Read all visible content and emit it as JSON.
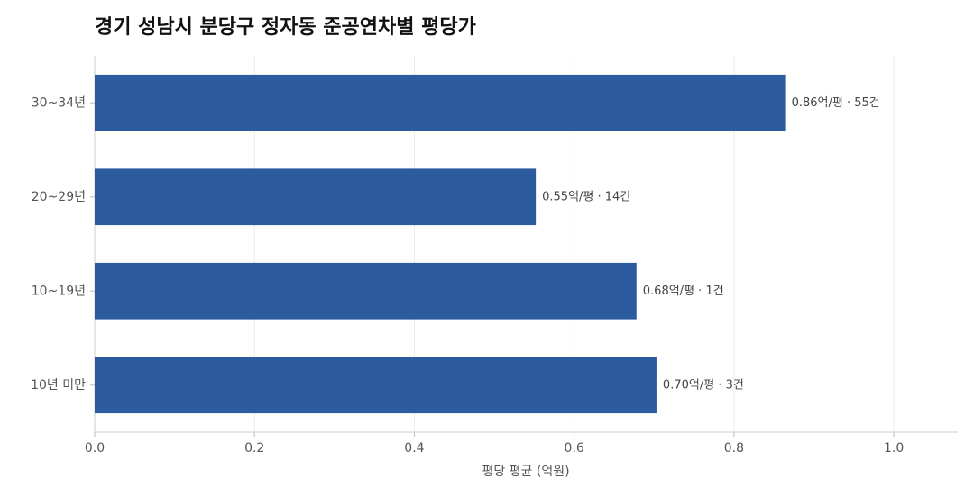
{
  "chart_data": {
    "type": "bar",
    "orientation": "horizontal",
    "title": "경기 성남시 분당구 정자동 준공연차별 평당가",
    "x_label": "평당 평균 (억원)",
    "categories": [
      "30~34년",
      "20~29년",
      "10~19년",
      "10년 미만"
    ],
    "values": [
      0.864,
      0.552,
      0.678,
      0.703
    ],
    "value_labels": [
      "0.86억/평 · 55건",
      "0.55억/평 · 14건",
      "0.68억/평 · 1건",
      "0.70억/평 · 3건"
    ],
    "color": "#2d5b9f",
    "xlim": [
      0,
      1.08
    ],
    "xticks": [
      {
        "value": 0,
        "label": "0.0"
      },
      0.2,
      0.4,
      0.6,
      0.8,
      {
        "value": 1,
        "label": "1.0"
      }
    ],
    "grid": true
  }
}
